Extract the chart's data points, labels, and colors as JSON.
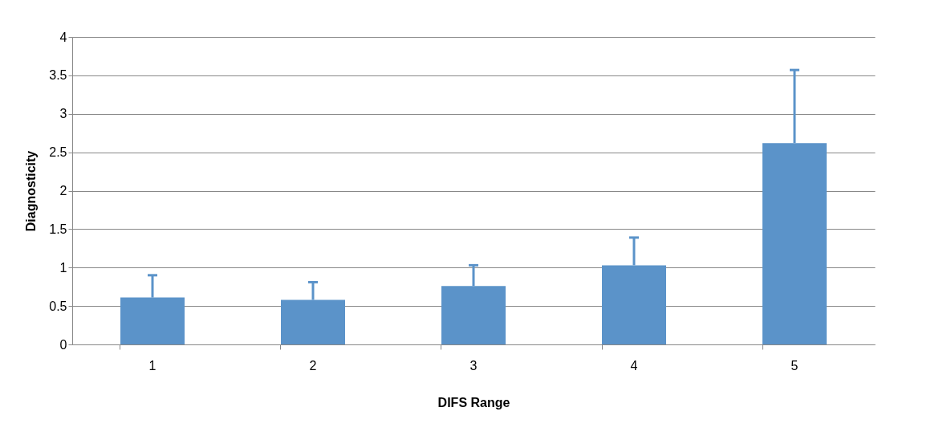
{
  "chart_data": {
    "type": "bar",
    "xlabel": "DIFS Range",
    "ylabel": "Diagnosticity",
    "categories": [
      "1",
      "2",
      "3",
      "4",
      "5"
    ],
    "values": [
      0.61,
      0.58,
      0.76,
      1.03,
      2.62
    ],
    "errors": [
      [
        0.61,
        0.9
      ],
      [
        0.58,
        0.81
      ],
      [
        0.76,
        1.03
      ],
      [
        1.03,
        1.39
      ],
      [
        2.62,
        3.57
      ]
    ],
    "color": "#5b93c9",
    "ylim": [
      0,
      4
    ],
    "yticks": [
      0,
      0.5,
      1,
      1.5,
      2,
      2.5,
      3,
      3.5,
      4
    ],
    "grid": "y"
  }
}
